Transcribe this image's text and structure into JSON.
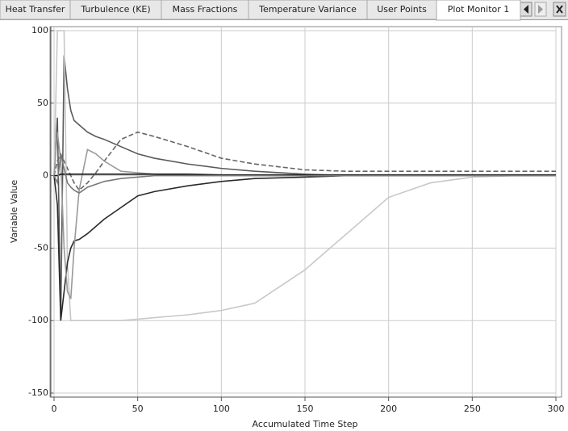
{
  "tabs": [
    {
      "label": "Heat Transfer",
      "active": false
    },
    {
      "label": "Turbulence (KE)",
      "active": false
    },
    {
      "label": "Mass Fractions",
      "active": false
    },
    {
      "label": "Temperature Variance",
      "active": false
    },
    {
      "label": "User Points",
      "active": false
    },
    {
      "label": "Plot Monitor 1",
      "active": true
    }
  ],
  "chart_data": {
    "type": "line",
    "xlabel": "Accumulated Time Step",
    "ylabel": "Variable Value",
    "x": [
      0,
      2,
      4,
      6,
      8,
      10,
      12,
      15,
      20,
      25,
      30,
      40,
      50,
      60,
      80,
      100,
      120,
      150,
      175,
      200,
      225,
      250,
      275,
      300
    ],
    "series": [
      {
        "color": "#5a5a5a",
        "dash": false,
        "values": [
          0,
          40,
          -100,
          83,
          60,
          45,
          38,
          35,
          30,
          27,
          25,
          20,
          15,
          12,
          8,
          5,
          3,
          1,
          0,
          0,
          0,
          0,
          0,
          0
        ]
      },
      {
        "color": "#666666",
        "dash": true,
        "values": [
          0,
          10,
          15,
          10,
          5,
          0,
          -5,
          -10,
          -5,
          2,
          10,
          25,
          30,
          27,
          20,
          12,
          8,
          4,
          3,
          3,
          3,
          3,
          3,
          3
        ]
      },
      {
        "color": "#c8c8c8",
        "dash": false,
        "values": [
          0,
          100,
          100,
          100,
          -60,
          -100,
          -100,
          -100,
          -100,
          -100,
          -100,
          -100,
          -99,
          -98,
          -96,
          -93,
          -88,
          -65,
          -40,
          -15,
          -5,
          -1,
          0,
          0
        ]
      },
      {
        "color": "#2a2a2a",
        "dash": false,
        "values": [
          0,
          -20,
          -100,
          -80,
          -60,
          -50,
          -45,
          -44,
          -40,
          -35,
          -30,
          -22,
          -14,
          -11,
          -7,
          -4,
          -2,
          -1,
          0,
          0,
          0,
          0,
          0,
          0
        ]
      },
      {
        "color": "#999999",
        "dash": false,
        "values": [
          0,
          30,
          10,
          -50,
          -80,
          -85,
          -50,
          -10,
          18,
          15,
          10,
          3,
          2,
          1,
          0,
          0,
          0,
          0,
          0,
          0,
          0,
          0,
          0,
          0
        ]
      },
      {
        "color": "#111111",
        "dash": false,
        "values": [
          0,
          0,
          1,
          1,
          1,
          1,
          1,
          1,
          1,
          1,
          1,
          1,
          1,
          1,
          1,
          0.5,
          0.5,
          0.5,
          0.5,
          0.5,
          0.5,
          0.5,
          0.5,
          0.5
        ]
      },
      {
        "color": "#777777",
        "dash": false,
        "values": [
          0,
          -5,
          15,
          5,
          -5,
          -8,
          -10,
          -12,
          -8,
          -6,
          -4,
          -2,
          -1,
          0,
          0,
          0,
          0,
          0,
          0,
          0,
          0,
          0,
          0,
          0
        ]
      }
    ],
    "xlim": [
      0,
      300
    ],
    "xticks": [
      0,
      50,
      100,
      150,
      200,
      250,
      300
    ],
    "ylim": [
      -150,
      100
    ],
    "yticks": [
      -150,
      -100,
      -50,
      0,
      50,
      100
    ],
    "grid": true
  }
}
